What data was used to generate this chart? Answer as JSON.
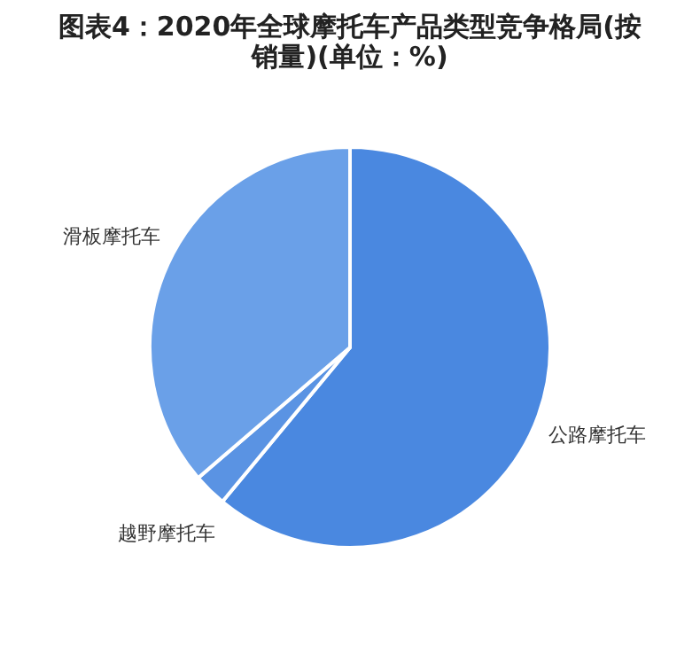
{
  "chart_data": {
    "type": "pie",
    "title": "图表4：2020年全球摩托车产品类型竞争格局(按销量)(单位：%)",
    "categories": [
      "公路摩托车",
      "越野摩托车",
      "滑板摩托车"
    ],
    "values": [
      61.0,
      2.7,
      36.3
    ],
    "colors": [
      "#4a88e0",
      "#5a93e3",
      "#6aa0e8"
    ],
    "legend": false
  }
}
